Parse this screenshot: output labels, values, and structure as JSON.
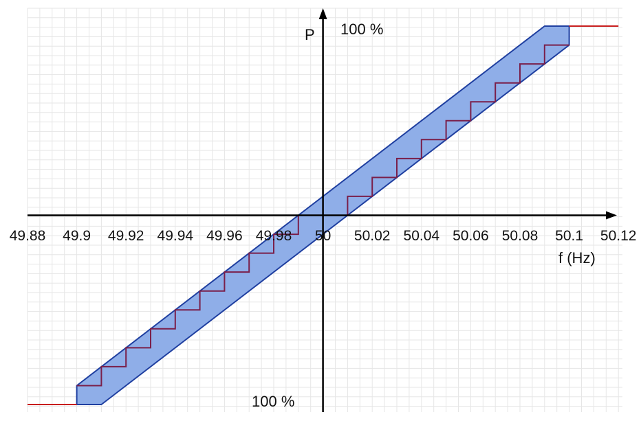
{
  "chart_data": {
    "type": "line",
    "xlabel": "f (Hz)",
    "ylabel": "P",
    "top_label": "100 %",
    "bottom_label": "100 %",
    "x_ticks": [
      "49.88",
      "49.9",
      "49.92",
      "49.94",
      "49.96",
      "49.98",
      "50",
      "50.02",
      "50.04",
      "50.06",
      "50.08",
      "50.1",
      "50.12"
    ],
    "xlim": [
      49.88,
      50.12
    ],
    "ylim": [
      -100,
      100
    ],
    "grid": true,
    "colors": {
      "band_fill": "#8faee8",
      "band_stroke": "#1f3fa0",
      "step_line": "#7a1f4a",
      "saturation_line": "#c81e1e",
      "axis": "#000000"
    },
    "series": [
      {
        "name": "",
        "kind": "band",
        "points": [
          {
            "x": 49.9,
            "y": -100
          },
          {
            "x": 49.9,
            "y": -90
          },
          {
            "x": 50.09,
            "y": 100
          },
          {
            "x": 50.1,
            "y": 100
          },
          {
            "x": 50.1,
            "y": 90
          },
          {
            "x": 49.91,
            "y": -100
          }
        ]
      },
      {
        "name": "",
        "kind": "step",
        "points": [
          {
            "x": 49.9,
            "y": -90
          },
          {
            "x": 49.91,
            "y": -90
          },
          {
            "x": 49.91,
            "y": -80
          },
          {
            "x": 49.92,
            "y": -80
          },
          {
            "x": 49.92,
            "y": -70
          },
          {
            "x": 49.93,
            "y": -70
          },
          {
            "x": 49.93,
            "y": -60
          },
          {
            "x": 49.94,
            "y": -60
          },
          {
            "x": 49.94,
            "y": -50
          },
          {
            "x": 49.95,
            "y": -50
          },
          {
            "x": 49.95,
            "y": -40
          },
          {
            "x": 49.96,
            "y": -40
          },
          {
            "x": 49.96,
            "y": -30
          },
          {
            "x": 49.97,
            "y": -30
          },
          {
            "x": 49.97,
            "y": -20
          },
          {
            "x": 49.98,
            "y": -20
          },
          {
            "x": 49.98,
            "y": -10
          },
          {
            "x": 49.99,
            "y": -10
          },
          {
            "x": 49.99,
            "y": 0
          },
          {
            "x": 50.01,
            "y": 0
          },
          {
            "x": 50.01,
            "y": 10
          },
          {
            "x": 50.02,
            "y": 10
          },
          {
            "x": 50.02,
            "y": 20
          },
          {
            "x": 50.03,
            "y": 20
          },
          {
            "x": 50.03,
            "y": 30
          },
          {
            "x": 50.04,
            "y": 30
          },
          {
            "x": 50.04,
            "y": 40
          },
          {
            "x": 50.05,
            "y": 40
          },
          {
            "x": 50.05,
            "y": 50
          },
          {
            "x": 50.06,
            "y": 50
          },
          {
            "x": 50.06,
            "y": 60
          },
          {
            "x": 50.07,
            "y": 60
          },
          {
            "x": 50.07,
            "y": 70
          },
          {
            "x": 50.08,
            "y": 70
          },
          {
            "x": 50.08,
            "y": 80
          },
          {
            "x": 50.09,
            "y": 80
          },
          {
            "x": 50.09,
            "y": 90
          },
          {
            "x": 50.1,
            "y": 90
          }
        ]
      },
      {
        "name": "",
        "kind": "saturation-low",
        "points": [
          {
            "x": 49.88,
            "y": -100
          },
          {
            "x": 49.9,
            "y": -100
          }
        ]
      },
      {
        "name": "",
        "kind": "saturation-high",
        "points": [
          {
            "x": 50.1,
            "y": 100
          },
          {
            "x": 50.12,
            "y": 100
          }
        ]
      }
    ]
  }
}
